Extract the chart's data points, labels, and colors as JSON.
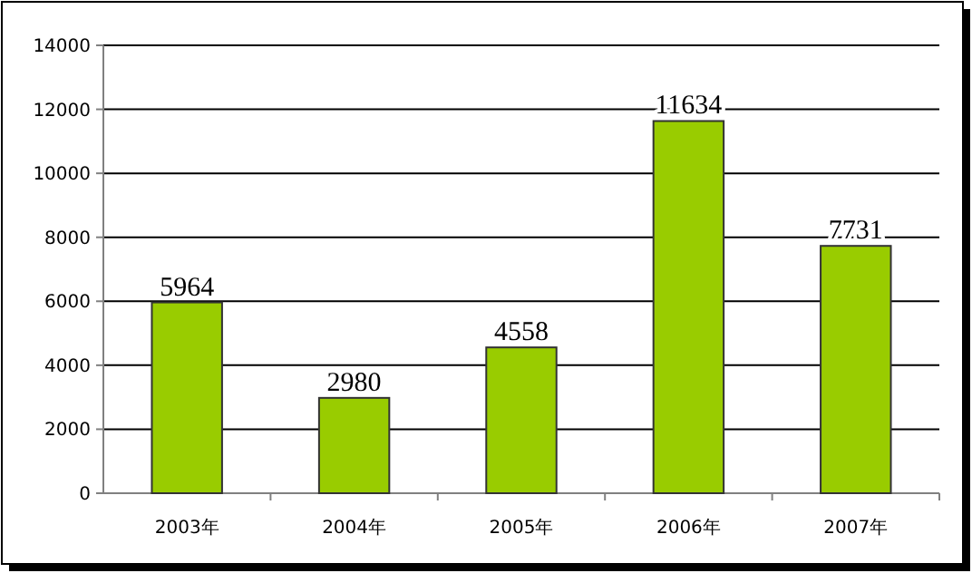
{
  "chart_data": {
    "type": "bar",
    "categories": [
      "2003年",
      "2004年",
      "2005年",
      "2006年",
      "2007年"
    ],
    "values": [
      5964,
      2980,
      4558,
      11634,
      7731
    ],
    "color": "#99cc00",
    "ylim": [
      0,
      14000
    ],
    "yticks": [
      0,
      2000,
      4000,
      6000,
      8000,
      10000,
      12000,
      14000
    ],
    "grid": "y",
    "data_labels": true
  }
}
